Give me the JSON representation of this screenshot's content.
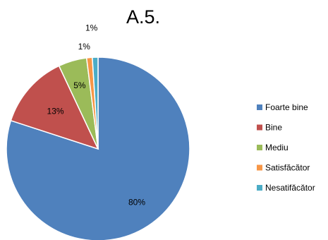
{
  "chart_data": {
    "type": "pie",
    "title": "A.5.",
    "categories": [
      "Foarte bine",
      "Bine",
      "Mediu",
      "Satisfăcător",
      "Nesatifăcător"
    ],
    "values": [
      80,
      13,
      5,
      1,
      1
    ],
    "data_labels": [
      "80%",
      "13%",
      "5%",
      "1%",
      "1%"
    ],
    "colors": [
      "#4F81BD",
      "#C0504D",
      "#9BBB59",
      "#F79646",
      "#4BACC6"
    ],
    "legend": "right",
    "start_angle": "12 o'clock",
    "direction": "clockwise"
  }
}
